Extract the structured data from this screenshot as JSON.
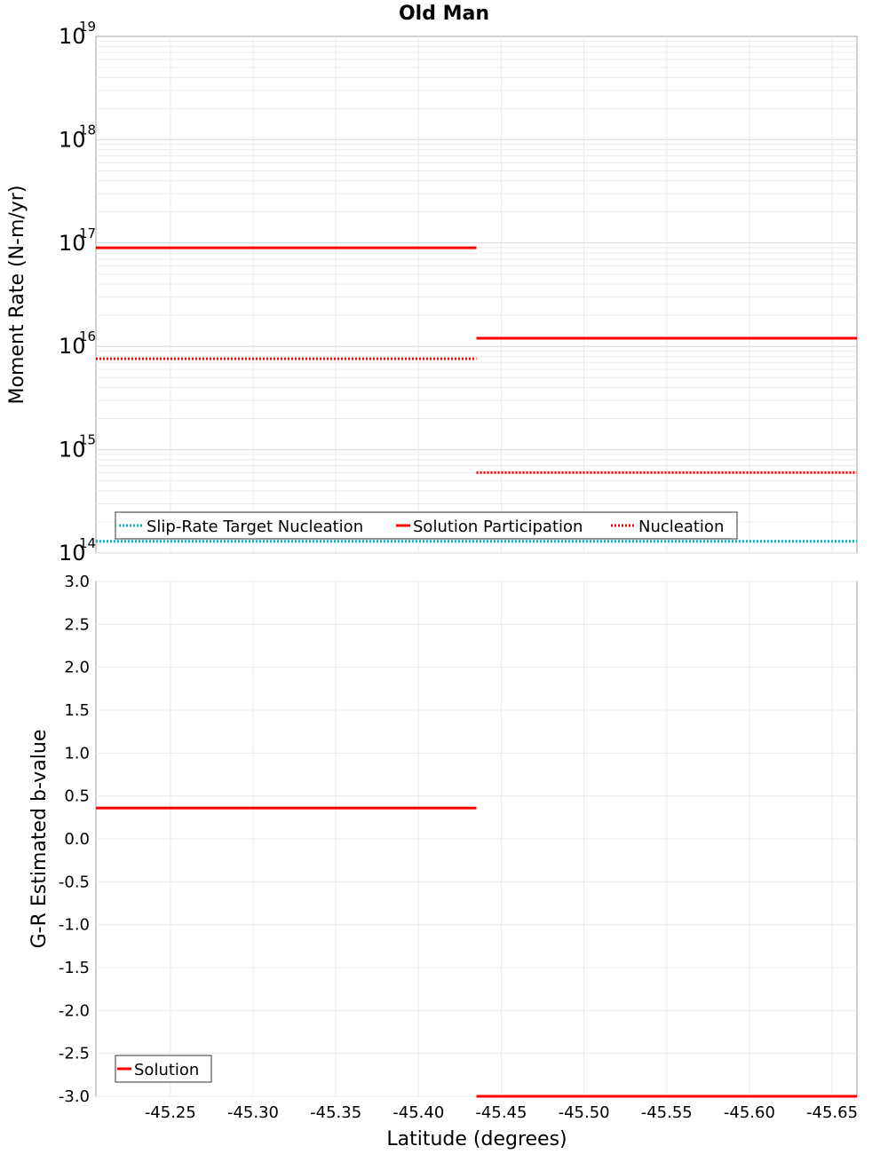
{
  "chart_data": [
    {
      "type": "line",
      "title": "Old Man",
      "ylabel": "Moment Rate (N-m/yr)",
      "xlabel": "",
      "yscale": "log",
      "ylim": [
        100000000000000.0,
        1e+19
      ],
      "xlim": [
        -45.205,
        -45.665
      ],
      "x_axis_reversed": true,
      "y_ticks": [
        {
          "base": "10",
          "exp": "14",
          "value": 100000000000000.0
        },
        {
          "base": "10",
          "exp": "15",
          "value": 1000000000000000.0
        },
        {
          "base": "10",
          "exp": "16",
          "value": 1e+16
        },
        {
          "base": "10",
          "exp": "17",
          "value": 1e+17
        },
        {
          "base": "10",
          "exp": "18",
          "value": 1e+18
        },
        {
          "base": "10",
          "exp": "19",
          "value": 1e+19
        }
      ],
      "grid": true,
      "legend_position": "bottom-left",
      "series": [
        {
          "name": "Slip-Rate Target Nucleation",
          "color": "#00b4c8",
          "style": "dotted",
          "points": [
            [
              -45.205,
              130000000000000.0
            ],
            [
              -45.665,
              130000000000000.0
            ]
          ]
        },
        {
          "name": "Solution Participation",
          "color": "#ff0000",
          "style": "solid",
          "segments": [
            [
              [
                -45.205,
                9e+16
              ],
              [
                -45.435,
                9e+16
              ]
            ],
            [
              [
                -45.435,
                1.2e+16
              ],
              [
                -45.665,
                1.2e+16
              ]
            ]
          ]
        },
        {
          "name": "Nucleation",
          "color": "#ff0000",
          "style": "dotted",
          "segments": [
            [
              [
                -45.205,
                7600000000000000.0
              ],
              [
                -45.435,
                7600000000000000.0
              ]
            ],
            [
              [
                -45.435,
                600000000000000.0
              ],
              [
                -45.665,
                600000000000000.0
              ]
            ]
          ]
        }
      ]
    },
    {
      "type": "line",
      "title": "",
      "ylabel": "G-R Estimated b-value",
      "xlabel": "Latitude (degrees)",
      "ylim": [
        -3.0,
        3.0
      ],
      "xlim": [
        -45.205,
        -45.665
      ],
      "x_axis_reversed": true,
      "y_ticks": [
        "3.0",
        "2.5",
        "2.0",
        "1.5",
        "1.0",
        "0.5",
        "0.0",
        "-0.5",
        "-1.0",
        "-1.5",
        "-2.0",
        "-2.5",
        "-3.0"
      ],
      "x_ticks": [
        "-45.25",
        "-45.30",
        "-45.35",
        "-45.40",
        "-45.45",
        "-45.50",
        "-45.55",
        "-45.60",
        "-45.65"
      ],
      "grid": true,
      "legend_position": "bottom-left",
      "series": [
        {
          "name": "Solution",
          "color": "#ff0000",
          "style": "solid",
          "segments": [
            [
              [
                -45.205,
                0.36
              ],
              [
                -45.435,
                0.36
              ]
            ],
            [
              [
                -45.435,
                -3.0
              ],
              [
                -45.665,
                -3.0
              ]
            ]
          ]
        }
      ]
    }
  ]
}
